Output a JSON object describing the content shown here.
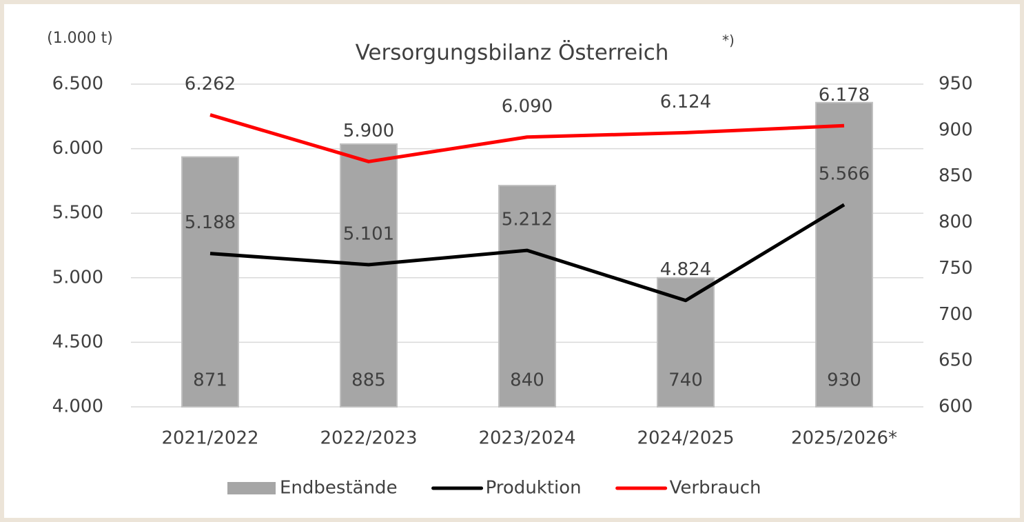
{
  "chart_data": {
    "type": "combo",
    "title": "Versorgungsbilanz Österreich",
    "title_note": "*)",
    "y_label": "(1.000 t)",
    "categories": [
      "2021/2022",
      "2022/2023",
      "2023/2024",
      "2024/2025",
      "2025/2026*"
    ],
    "series": [
      {
        "name": "Endbestände",
        "type": "bar",
        "axis": "y2",
        "color": "#a6a6a6",
        "values": [
          871,
          885,
          840,
          740,
          930
        ]
      },
      {
        "name": "Produktion",
        "type": "line",
        "color": "#000000",
        "values": [
          5188,
          5101,
          5212,
          4824,
          5566
        ],
        "value_labels": [
          "5.188",
          "5.101",
          "5.212",
          "4.824",
          "5.566"
        ]
      },
      {
        "name": "Verbrauch",
        "type": "line",
        "color": "#ff0000",
        "values": [
          6262,
          5900,
          6090,
          6124,
          6178
        ],
        "value_labels": [
          "6.262",
          "5.900",
          "6.090",
          "6.124",
          "6.178"
        ]
      }
    ],
    "ylim": [
      4000,
      6500
    ],
    "yticks": [
      {
        "value": 4000,
        "label": "4.000"
      },
      {
        "value": 4500,
        "label": "4.500"
      },
      {
        "value": 5000,
        "label": "5.000"
      },
      {
        "value": 5500,
        "label": "5.500"
      },
      {
        "value": 6000,
        "label": "6.000"
      },
      {
        "value": 6500,
        "label": "6.500"
      }
    ],
    "y2lim": [
      600,
      950
    ],
    "y2ticks": [
      600,
      650,
      700,
      750,
      800,
      850,
      900,
      950
    ],
    "grid": true,
    "legend": "bottom"
  }
}
